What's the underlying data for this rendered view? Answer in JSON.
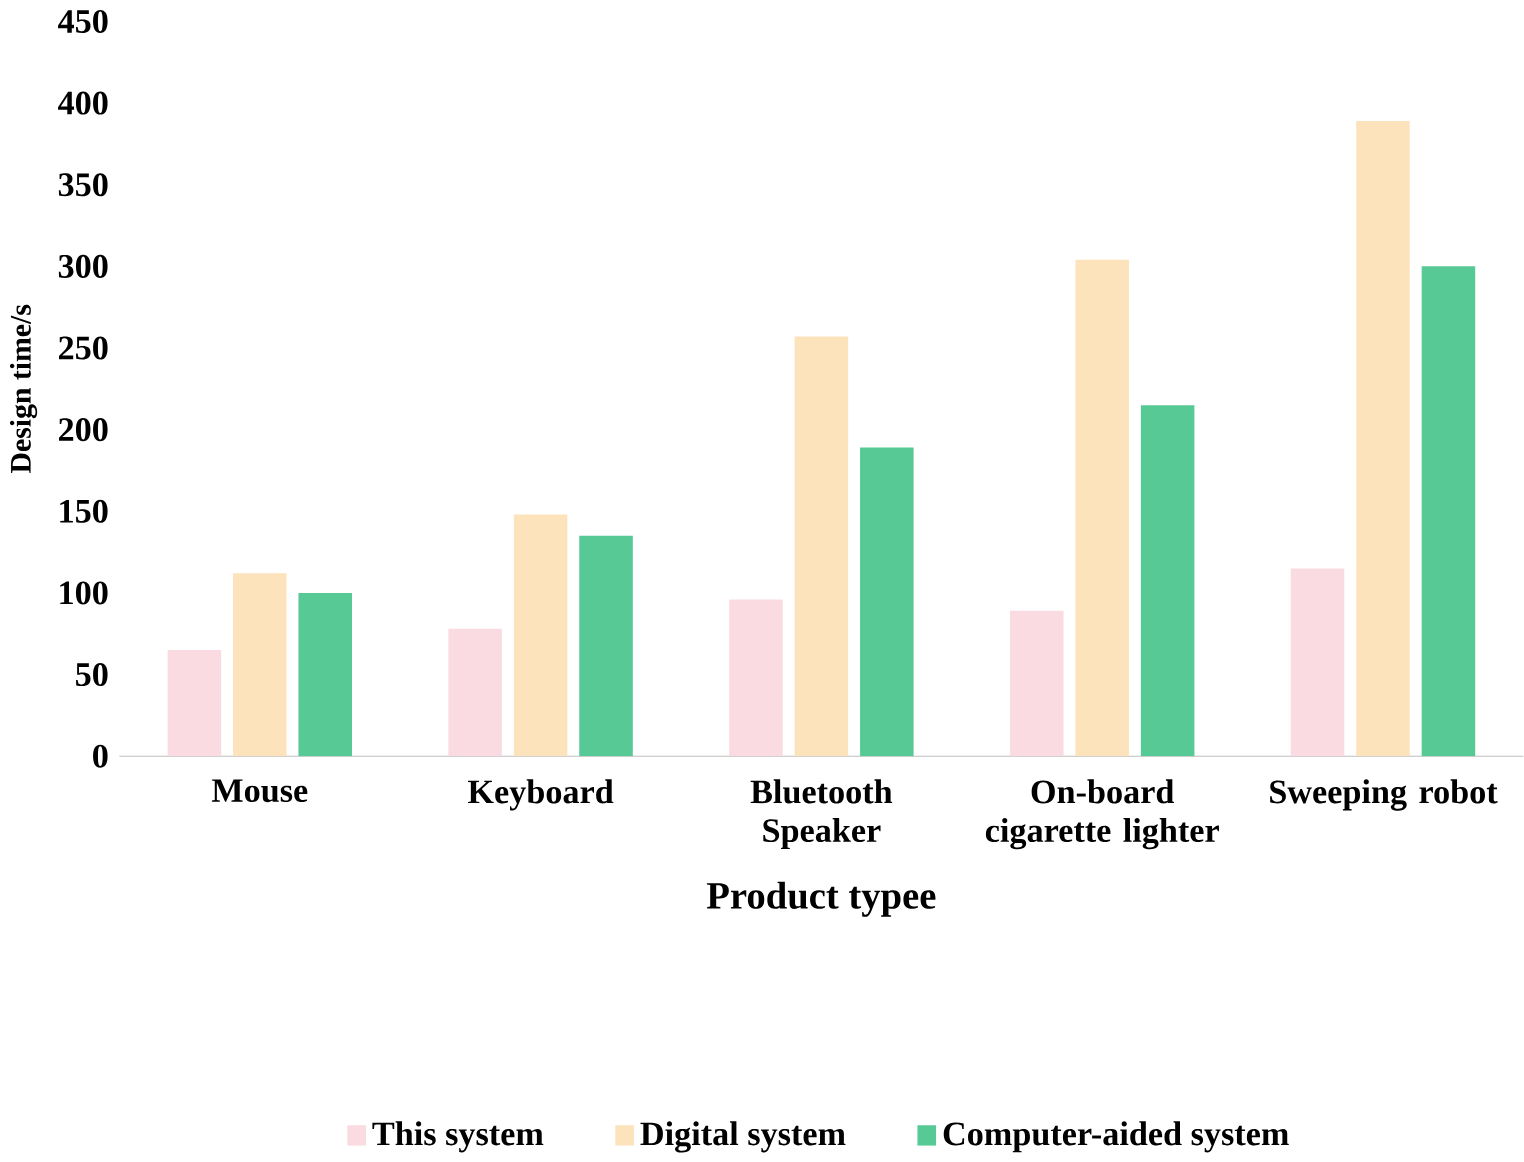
{
  "chart_data": {
    "type": "bar",
    "xlabel": "Product typee",
    "ylabel": "Design time/s",
    "categories": [
      "Mouse",
      "Keyboard",
      "Bluetooth Speaker",
      "On-board cigarette lighter",
      "Sweeping robot"
    ],
    "series": [
      {
        "name": "This system",
        "color": "#fadbe1",
        "values": [
          65,
          78,
          96,
          89,
          115
        ]
      },
      {
        "name": "Digital system",
        "color": "#fde3bc",
        "values": [
          112,
          148,
          257,
          304,
          389
        ]
      },
      {
        "name": "Computer-aided system",
        "color": "#57c994",
        "values": [
          100,
          135,
          189,
          215,
          300
        ]
      }
    ],
    "ylim": [
      0,
      450
    ],
    "yticks": [
      0,
      50,
      100,
      150,
      200,
      250,
      300,
      350,
      400,
      450
    ],
    "legend": "bottom"
  }
}
